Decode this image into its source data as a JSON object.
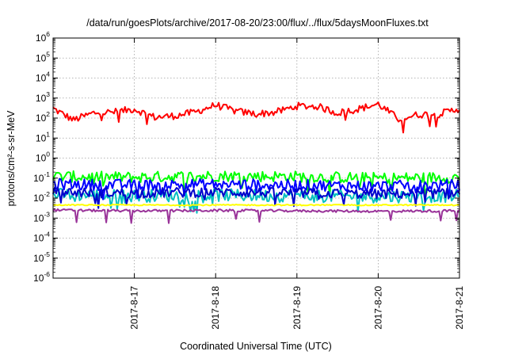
{
  "chart_data": {
    "type": "line",
    "title": "/data/run/goesPlots/archive/2017-08-20/23:00/flux/../flux/5daysMoonFluxes.txt",
    "xlabel": "Coordinated Universal Time (UTC)",
    "ylabel": "protons/cm²-s-sr-MeV",
    "y_scale": "log",
    "ylim": [
      1e-06,
      1000000.0
    ],
    "xlim": [
      "2017-08-16 00:00",
      "2017-08-21 00:00"
    ],
    "y_ticks": [
      {
        "base": "10",
        "exp": "-6"
      },
      {
        "base": "10",
        "exp": "-5"
      },
      {
        "base": "10",
        "exp": "-4"
      },
      {
        "base": "10",
        "exp": "-3"
      },
      {
        "base": "10",
        "exp": "-2"
      },
      {
        "base": "10",
        "exp": "-1"
      },
      {
        "base": "10",
        "exp": "0"
      },
      {
        "base": "10",
        "exp": "1"
      },
      {
        "base": "10",
        "exp": "2"
      },
      {
        "base": "10",
        "exp": "3"
      },
      {
        "base": "10",
        "exp": "4"
      },
      {
        "base": "10",
        "exp": "5"
      },
      {
        "base": "10",
        "exp": "6"
      }
    ],
    "x_ticks": [
      "2017-8-17",
      "2017-8-18",
      "2017-8-19",
      "2017-8-20",
      "2017-8-21"
    ],
    "grid": true,
    "legend": "none",
    "series": [
      {
        "color": "#ff0000",
        "x": [
          "2017-08-16 00:00",
          "2017-08-16 06:00",
          "2017-08-16 12:00",
          "2017-08-16 18:00",
          "2017-08-17 00:00",
          "2017-08-17 06:00",
          "2017-08-17 12:00",
          "2017-08-17 18:00",
          "2017-08-18 00:00",
          "2017-08-18 06:00",
          "2017-08-18 12:00",
          "2017-08-18 18:00",
          "2017-08-19 00:00",
          "2017-08-19 06:00",
          "2017-08-19 12:00",
          "2017-08-19 18:00",
          "2017-08-20 00:00",
          "2017-08-20 06:00",
          "2017-08-20 12:00",
          "2017-08-20 18:00",
          "2017-08-21 00:00"
        ],
        "values": [
          300,
          80,
          180,
          200,
          280,
          110,
          130,
          200,
          450,
          220,
          160,
          200,
          400,
          380,
          180,
          280,
          500,
          90,
          150,
          160,
          300
        ]
      },
      {
        "color": "#00ff00",
        "x": [
          "2017-08-16 00:00",
          "2017-08-17 00:00",
          "2017-08-18 00:00",
          "2017-08-19 00:00",
          "2017-08-20 00:00",
          "2017-08-21 00:00"
        ],
        "values": [
          0.12,
          0.11,
          0.13,
          0.12,
          0.1,
          0.11
        ]
      },
      {
        "color": "#00c0c0",
        "x": [
          "2017-08-16 00:00",
          "2017-08-17 00:00",
          "2017-08-18 00:00",
          "2017-08-19 00:00",
          "2017-08-20 00:00",
          "2017-08-21 00:00"
        ],
        "values": [
          0.015,
          0.013,
          0.014,
          0.013,
          0.012,
          0.013
        ]
      },
      {
        "color": "#0000ff",
        "x": [
          "2017-08-16 00:00",
          "2017-08-17 00:00",
          "2017-08-18 00:00",
          "2017-08-19 00:00",
          "2017-08-20 00:00",
          "2017-08-21 00:00"
        ],
        "values": [
          0.05,
          0.045,
          0.05,
          0.045,
          0.04,
          0.045
        ]
      },
      {
        "color": "#0000cc",
        "x": [
          "2017-08-16 00:00",
          "2017-08-17 00:00",
          "2017-08-18 00:00",
          "2017-08-19 00:00",
          "2017-08-20 00:00",
          "2017-08-21 00:00"
        ],
        "values": [
          0.02,
          0.018,
          0.02,
          0.018,
          0.016,
          0.018
        ]
      },
      {
        "color": "#ffff00",
        "x": [
          "2017-08-16 00:00",
          "2017-08-17 00:00",
          "2017-08-18 00:00",
          "2017-08-19 00:00",
          "2017-08-20 00:00",
          "2017-08-21 00:00"
        ],
        "values": [
          0.0045,
          0.0045,
          0.0045,
          0.0045,
          0.0045,
          0.0045
        ]
      },
      {
        "color": "#993399",
        "x": [
          "2017-08-16 00:00",
          "2017-08-17 00:00",
          "2017-08-18 00:00",
          "2017-08-19 00:00",
          "2017-08-20 00:00",
          "2017-08-21 00:00"
        ],
        "values": [
          0.0025,
          0.0023,
          0.0024,
          0.0023,
          0.0022,
          0.0023
        ]
      }
    ]
  }
}
